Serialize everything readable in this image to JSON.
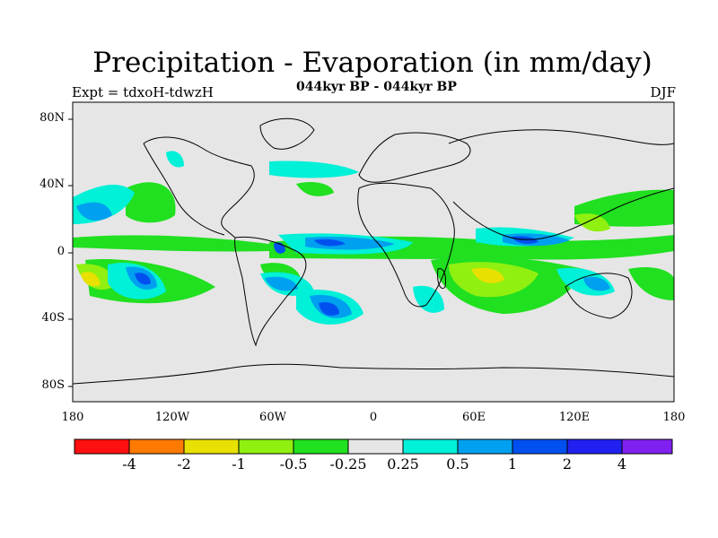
{
  "title": "Precipitation - Evaporation (in mm/day)",
  "subtitle": "044kyr BP - 044kyr BP",
  "experiment": "Expt = tdxoH-tdwzH",
  "season": "DJF",
  "map": {
    "lat_labels": [
      "80N",
      "40N",
      "0",
      "40S",
      "80S"
    ],
    "lon_labels": [
      "180",
      "120W",
      "60W",
      "0",
      "60E",
      "120E",
      "180"
    ],
    "background_color": "#e6e6e6"
  },
  "colorbar": {
    "labels": [
      "-4",
      "-2",
      "-1",
      "-0.5",
      "-0.25",
      "0.25",
      "0.5",
      "1",
      "2",
      "4"
    ],
    "colors": [
      "#ff1010",
      "#ff7a00",
      "#e8e000",
      "#90f010",
      "#20e020",
      "#e6e6e6",
      "#00f0d8",
      "#00a0f0",
      "#0050f0",
      "#2020f0",
      "#8020f0"
    ]
  }
}
